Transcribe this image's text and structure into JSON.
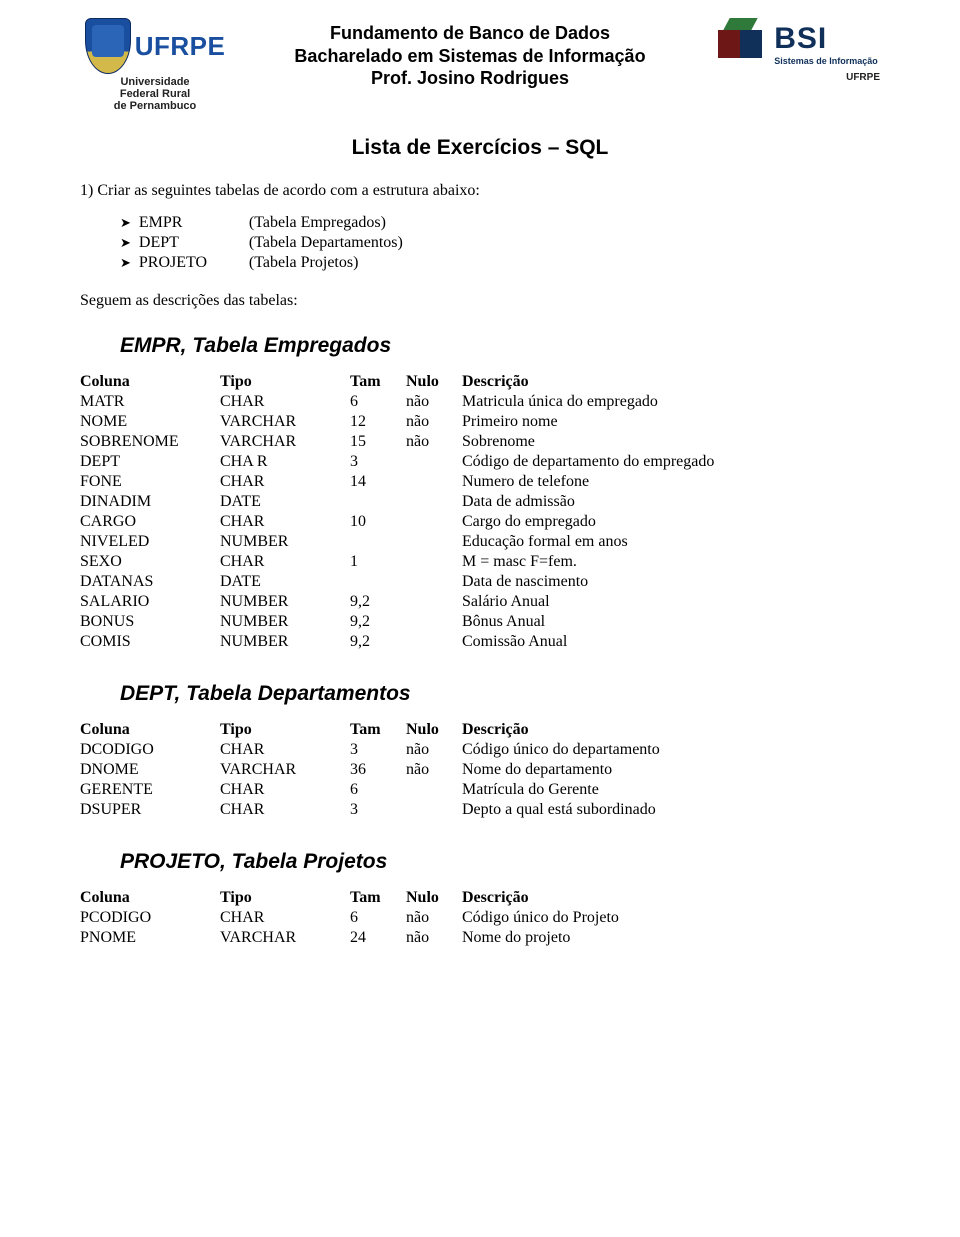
{
  "header": {
    "line1": "Fundamento de Banco de Dados",
    "line2": "Bacharelado em Sistemas de Informação",
    "line3": "Prof. Josino Rodrigues"
  },
  "logo_left": {
    "brand": "UFRPE",
    "sub1": "Universidade",
    "sub2": "Federal Rural",
    "sub3": "de Pernambuco"
  },
  "logo_right": {
    "brand": "BSI",
    "sub": "Sistemas de Informação",
    "tag": "UFRPE"
  },
  "doc_title": "Lista de Exercícios – SQL",
  "q1_text": "1) Criar as seguintes tabelas de acordo com a estrutura abaixo:",
  "bullets": [
    {
      "key": "EMPR",
      "desc": "(Tabela Empregados)"
    },
    {
      "key": "DEPT",
      "desc": "(Tabela Departamentos)"
    },
    {
      "key": "PROJETO",
      "desc": "(Tabela Projetos)"
    }
  ],
  "follow_text": "Seguem as descrições das tabelas:",
  "table_headers": {
    "c": "Coluna",
    "t": "Tipo",
    "s": "Tam",
    "n": "Nulo",
    "d": "Descrição"
  },
  "tables": [
    {
      "title": "EMPR, Tabela Empregados",
      "rows": [
        {
          "c": "MATR",
          "t": "CHAR",
          "s": "6",
          "n": "não",
          "d": "Matricula única do empregado"
        },
        {
          "c": "NOME",
          "t": "VARCHAR",
          "s": "12",
          "n": "não",
          "d": "Primeiro nome"
        },
        {
          "c": "SOBRENOME",
          "t": "VARCHAR",
          "s": "15",
          "n": "não",
          "d": "Sobrenome"
        },
        {
          "c": "DEPT",
          "t": "CHA R",
          "s": "3",
          "n": "",
          "d": "Código de departamento do empregado"
        },
        {
          "c": "FONE",
          "t": "CHAR",
          "s": "14",
          "n": "",
          "d": "Numero de telefone"
        },
        {
          "c": "DINADIM",
          "t": "DATE",
          "s": "",
          "n": "",
          "d": "Data de admissão"
        },
        {
          "c": "CARGO",
          "t": "CHAR",
          "s": "10",
          "n": "",
          "d": "Cargo do empregado"
        },
        {
          "c": "NIVELED",
          "t": "NUMBER",
          "s": "",
          "n": "",
          "d": "Educação formal em anos"
        },
        {
          "c": "SEXO",
          "t": "CHAR",
          "s": "1",
          "n": "",
          "d": "M = masc   F=fem."
        },
        {
          "c": "DATANAS",
          "t": "DATE",
          "s": "",
          "n": "",
          "d": "Data de nascimento"
        },
        {
          "c": "SALARIO",
          "t": "NUMBER",
          "s": "9,2",
          "n": "",
          "d": "Salário Anual"
        },
        {
          "c": "BONUS",
          "t": "NUMBER",
          "s": "9,2",
          "n": "",
          "d": "Bônus Anual"
        },
        {
          "c": "COMIS",
          "t": "NUMBER",
          "s": "9,2",
          "n": "",
          "d": "Comissão Anual"
        }
      ]
    },
    {
      "title": "DEPT, Tabela Departamentos",
      "rows": [
        {
          "c": "DCODIGO",
          "t": "CHAR",
          "s": "3",
          "n": "não",
          "d": "Código único do departamento"
        },
        {
          "c": "DNOME",
          "t": "VARCHAR",
          "s": "36",
          "n": "não",
          "d": "Nome do departamento"
        },
        {
          "c": "GERENTE",
          "t": "CHAR",
          "s": "6",
          "n": "",
          "d": "Matrícula do Gerente"
        },
        {
          "c": "DSUPER",
          "t": "CHAR",
          "s": "3",
          "n": "",
          "d": "Depto a qual está subordinado"
        }
      ]
    },
    {
      "title": "PROJETO, Tabela Projetos",
      "rows": [
        {
          "c": "PCODIGO",
          "t": "CHAR",
          "s": "6",
          "n": "não",
          "d": "Código único do Projeto"
        },
        {
          "c": "PNOME",
          "t": "VARCHAR",
          "s": "24",
          "n": "não",
          "d": "Nome do projeto"
        }
      ]
    }
  ]
}
